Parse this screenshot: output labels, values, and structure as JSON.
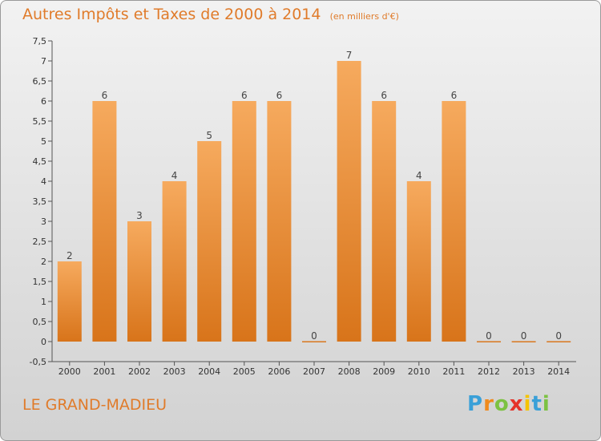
{
  "title": "Autres Impôts et Taxes de 2000 à 2014",
  "subtitle": "(en milliers d'€)",
  "commune": "LE GRAND-MADIEU",
  "logo": {
    "letters": [
      "P",
      "r",
      "o",
      "x",
      "i",
      "t",
      "i"
    ],
    "colors": [
      "#3aa0d8",
      "#f08a1c",
      "#7cc242",
      "#e5332a",
      "#f5c400",
      "#3aa0d8",
      "#7cc242"
    ]
  },
  "colors": {
    "bar": "#f0a050",
    "bar_dark": "#d9771e",
    "title": "#e07b2a",
    "text": "#333333"
  },
  "chart_data": {
    "type": "bar",
    "title": "Autres Impôts et Taxes de 2000 à 2014",
    "subtitle": "(en milliers d'€)",
    "categories": [
      "2000",
      "2001",
      "2002",
      "2003",
      "2004",
      "2005",
      "2006",
      "2007",
      "2008",
      "2009",
      "2010",
      "2011",
      "2012",
      "2013",
      "2014"
    ],
    "values": [
      2,
      6,
      3,
      4,
      5,
      6,
      6,
      0,
      7,
      6,
      4,
      6,
      0,
      0,
      0
    ],
    "data_labels": [
      "2",
      "6",
      "3",
      "4",
      "5",
      "6",
      "6",
      "0",
      "7",
      "6",
      "4",
      "6",
      "0",
      "0",
      "0"
    ],
    "ylim": [
      -0.5,
      7.5
    ],
    "yticks": [
      "-0,5",
      "0",
      "0,5",
      "1",
      "1,5",
      "2",
      "2,5",
      "3",
      "3,5",
      "4",
      "4,5",
      "5",
      "5,5",
      "6",
      "6,5",
      "7",
      "7,5"
    ],
    "xlabel": "",
    "ylabel": "",
    "grid": false
  }
}
